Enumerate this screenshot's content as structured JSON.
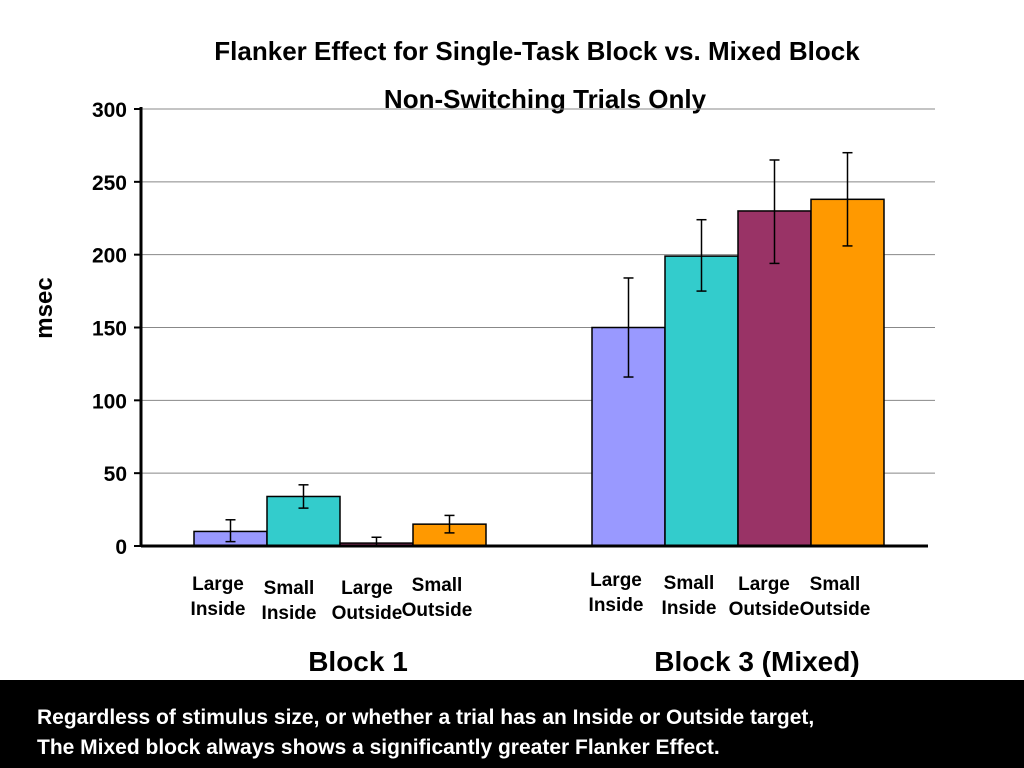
{
  "chart_data": {
    "type": "bar",
    "title": "Flanker Effect for Single-Task Block vs. Mixed Block",
    "subtitle": "Non-Switching Trials Only",
    "ylabel": "msec",
    "xlabel": "",
    "ylim": [
      0,
      300
    ],
    "yticks": [
      0,
      50,
      100,
      150,
      200,
      250,
      300
    ],
    "grid": true,
    "groups": [
      {
        "name": "Block 1",
        "bars": [
          {
            "label": [
              "Large",
              "Inside"
            ],
            "value": 10,
            "err_low": 3,
            "err_high": 18,
            "color": "#9999ff"
          },
          {
            "label": [
              "Small",
              "Inside"
            ],
            "value": 34,
            "err_low": 26,
            "err_high": 42,
            "color": "#33cccc"
          },
          {
            "label": [
              "Large",
              "Outside"
            ],
            "value": 2,
            "err_low": 0,
            "err_high": 6,
            "color": "#993366"
          },
          {
            "label": [
              "Small",
              "Outside"
            ],
            "value": 15,
            "err_low": 9,
            "err_high": 21,
            "color": "#ff9900"
          }
        ]
      },
      {
        "name": "Block 3 (Mixed)",
        "bars": [
          {
            "label": [
              "Large",
              "Inside"
            ],
            "value": 150,
            "err_low": 116,
            "err_high": 184,
            "color": "#9999ff"
          },
          {
            "label": [
              "Small",
              "Inside"
            ],
            "value": 199,
            "err_low": 175,
            "err_high": 224,
            "color": "#33cccc"
          },
          {
            "label": [
              "Large",
              "Outside"
            ],
            "value": 230,
            "err_low": 194,
            "err_high": 265,
            "color": "#993366"
          },
          {
            "label": [
              "Small",
              "Outside"
            ],
            "value": 238,
            "err_low": 206,
            "err_high": 270,
            "color": "#ff9900"
          }
        ]
      }
    ]
  },
  "footer": {
    "line1": "Regardless of stimulus size, or whether a trial has an Inside or Outside target,",
    "line2": "The Mixed block always shows a significantly greater Flanker Effect."
  }
}
